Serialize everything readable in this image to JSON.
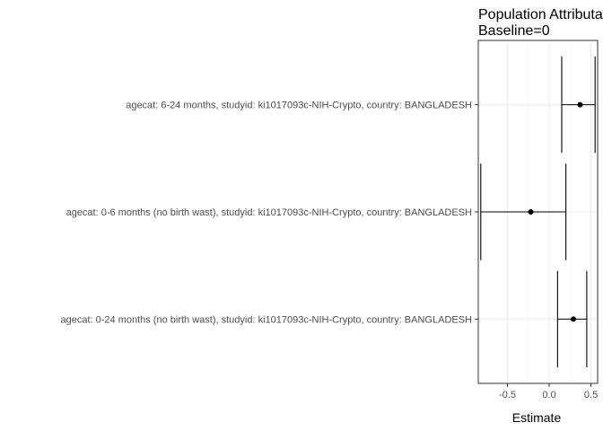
{
  "chart_data": {
    "type": "forest",
    "title_lines": [
      "Population Attributable Difference",
      "Baseline=0"
    ],
    "xlabel": "Estimate",
    "ylabel": "",
    "xlim": [
      -0.85,
      0.58
    ],
    "xticks": [
      -0.5,
      0.0,
      0.5
    ],
    "xtick_labels": [
      "-0.5",
      "0.0",
      "0.5"
    ],
    "grid": true,
    "categories": [
      "agecat: 6-24 months, studyid: ki1017093c-NIH-Crypto, country: BANGLADESH",
      "agecat: 0-6 months (no birth wast), studyid: ki1017093c-NIH-Crypto, country: BANGLADESH",
      "agecat: 0-24 months (no birth wast), studyid: ki1017093c-NIH-Crypto, country: BANGLADESH"
    ],
    "estimates": [
      0.37,
      -0.22,
      0.29
    ],
    "lower": [
      0.15,
      -0.82,
      0.1
    ],
    "upper": [
      0.55,
      0.2,
      0.45
    ],
    "colors": {
      "mark": "#000000",
      "grid": "#ebebeb",
      "panel_border": "#333333"
    }
  }
}
